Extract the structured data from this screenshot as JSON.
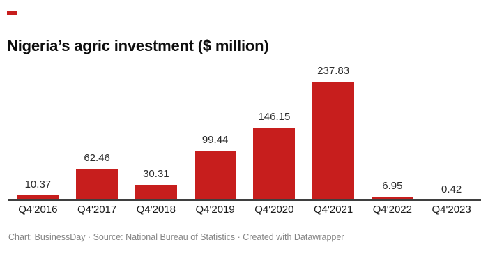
{
  "brand": {
    "accent_color": "#c71e1d"
  },
  "header": {
    "title": "Nigeria’s agric investment ($ million)"
  },
  "chart_data": {
    "type": "bar",
    "categories": [
      "Q4'2016",
      "Q4'2017",
      "Q4'2018",
      "Q4'2019",
      "Q4'2020",
      "Q4'2021",
      "Q4'2022",
      "Q4'2023"
    ],
    "values": [
      10.37,
      62.46,
      30.31,
      99.44,
      146.15,
      237.83,
      6.95,
      0.42
    ],
    "value_labels": [
      "10.37",
      "62.46",
      "30.31",
      "99.44",
      "146.15",
      "237.83",
      "6.95",
      "0.42"
    ],
    "title": "Nigeria’s agric investment ($ million)",
    "xlabel": "",
    "ylabel": "",
    "ylim": [
      0,
      237.83
    ],
    "bar_color": "#c71e1d",
    "grid": false,
    "legend": false,
    "value_label_color": "#2b2b2b",
    "axis_line_color": "#3f3f3f"
  },
  "footer": {
    "text": "Chart: BusinessDay · Source: National Bureau of Statistics · Created with Datawrapper"
  }
}
